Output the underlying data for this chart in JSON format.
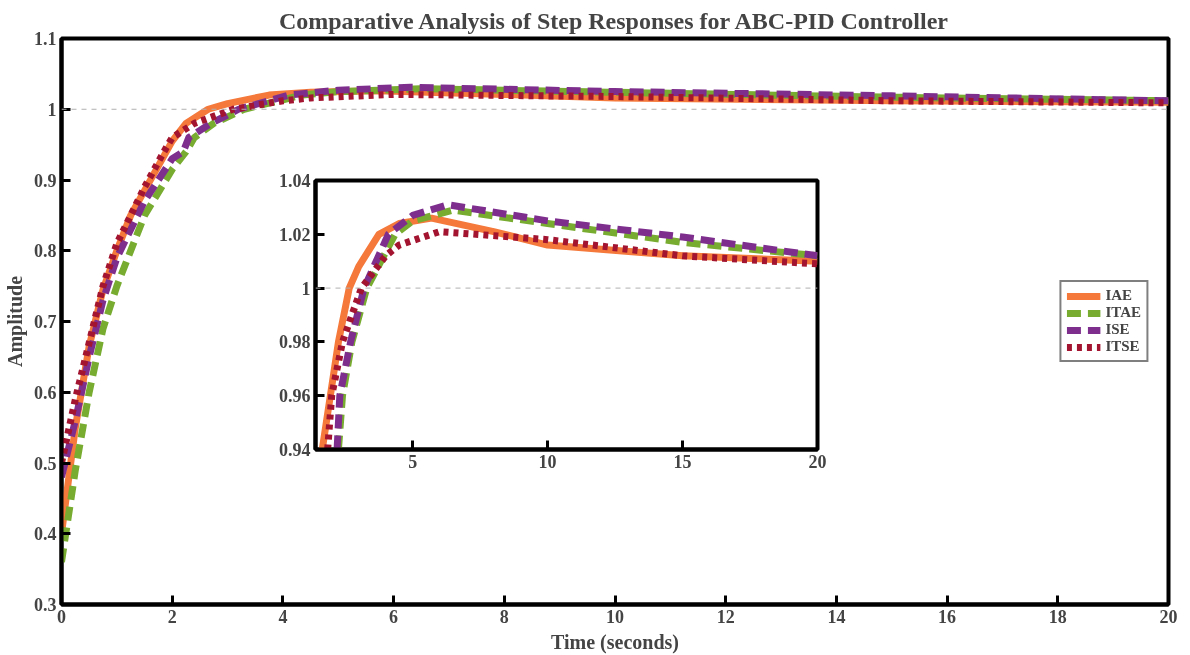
{
  "chart_data": [
    {
      "type": "line",
      "title": "Comparative Analysis of Step Responses for ABC-PID Controller",
      "xlabel": "Time (seconds)",
      "ylabel": "Amplitude",
      "xlim": [
        0,
        20
      ],
      "ylim": [
        0.3,
        1.1
      ],
      "xticks": [
        0,
        2,
        4,
        6,
        8,
        10,
        12,
        14,
        16,
        18,
        20
      ],
      "yticks": [
        0.3,
        0.4,
        0.5,
        0.6,
        0.7,
        0.8,
        0.9,
        1,
        1.1
      ],
      "grid": false,
      "legend": "right",
      "ref_lines": [
        {
          "axis": "y",
          "value": 1,
          "color": "#b0b0b0",
          "line_style": "dotted"
        }
      ],
      "series": [
        {
          "name": "IAE",
          "color": "#f4793b",
          "line_style": "solid",
          "x": [
            0,
            0.25,
            0.5,
            0.75,
            1,
            1.25,
            1.5,
            2,
            2.25,
            2.65,
            3,
            3.75,
            4.5,
            5.7,
            8,
            10,
            15,
            20
          ],
          "values": [
            0.4,
            0.55,
            0.665,
            0.745,
            0.8,
            0.85,
            0.885,
            0.955,
            0.98,
            1.0,
            1.008,
            1.02,
            1.024,
            1.026,
            1.021,
            1.016,
            1.012,
            1.01
          ]
        },
        {
          "name": "ITAE",
          "color": "#77ac30",
          "line_style": "dashed",
          "x": [
            0,
            0.25,
            0.5,
            0.75,
            1,
            1.5,
            2,
            2.25,
            2.4,
            2.75,
            3.3,
            4.35,
            5,
            6.5,
            10,
            15,
            20
          ],
          "values": [
            0.36,
            0.49,
            0.6,
            0.69,
            0.75,
            0.85,
            0.915,
            0.94,
            0.96,
            0.98,
            1.0,
            1.02,
            1.025,
            1.029,
            1.024,
            1.017,
            1.012
          ]
        },
        {
          "name": "ISE",
          "color": "#7e2f8e",
          "line_style": "dashed",
          "x": [
            0,
            0.25,
            0.5,
            0.75,
            1,
            1.5,
            2,
            2.2,
            2.3,
            2.7,
            3.2,
            4.1,
            5,
            6.3,
            10,
            15,
            20
          ],
          "values": [
            0.48,
            0.56,
            0.65,
            0.73,
            0.79,
            0.87,
            0.93,
            0.94,
            0.96,
            0.98,
            1.0,
            1.02,
            1.027,
            1.031,
            1.025,
            1.019,
            1.012
          ]
        },
        {
          "name": "ITSE",
          "color": "#a2142f",
          "line_style": "dotted",
          "x": [
            0,
            0.25,
            0.5,
            0.75,
            1,
            1.5,
            1.85,
            2,
            2.4,
            3.1,
            4,
            4.5,
            6,
            10,
            15,
            20
          ],
          "values": [
            0.5,
            0.59,
            0.67,
            0.75,
            0.81,
            0.89,
            0.94,
            0.96,
            0.98,
            1.0,
            1.012,
            1.016,
            1.021,
            1.018,
            1.012,
            1.009
          ]
        }
      ]
    },
    {
      "type": "line",
      "xlim": [
        1.4,
        20
      ],
      "ylim": [
        0.94,
        1.04
      ],
      "xticks": [
        5,
        10,
        15,
        20
      ],
      "yticks": [
        0.94,
        0.96,
        0.98,
        1,
        1.02,
        1.04
      ],
      "grid": false,
      "ref_lines": [
        {
          "axis": "y",
          "value": 1,
          "color": "#b0b0b0",
          "line_style": "dotted"
        }
      ],
      "series": [
        {
          "color": "#f4793b",
          "line_style": "solid",
          "x": [
            1.65,
            1.95,
            2.25,
            2.65,
            3,
            3.75,
            4.5,
            5.7,
            8,
            10,
            15,
            20
          ],
          "values": [
            0.94,
            0.96,
            0.98,
            1.0,
            1.008,
            1.02,
            1.024,
            1.026,
            1.021,
            1.016,
            1.012,
            1.01
          ]
        },
        {
          "color": "#77ac30",
          "line_style": "dashed",
          "x": [
            2.25,
            2.4,
            2.75,
            3.3,
            4.35,
            5,
            6.5,
            10,
            15,
            20
          ],
          "values": [
            0.94,
            0.96,
            0.98,
            1.0,
            1.02,
            1.025,
            1.029,
            1.024,
            1.017,
            1.012
          ]
        },
        {
          "color": "#7e2f8e",
          "line_style": "dashed",
          "x": [
            2.2,
            2.3,
            2.7,
            3.2,
            4.1,
            5,
            6.3,
            10,
            15,
            20
          ],
          "values": [
            0.94,
            0.96,
            0.98,
            1.0,
            1.02,
            1.027,
            1.031,
            1.025,
            1.019,
            1.012
          ]
        },
        {
          "color": "#a2142f",
          "line_style": "dotted",
          "x": [
            1.85,
            2,
            2.4,
            3.1,
            4,
            4.5,
            6,
            10,
            15,
            20
          ],
          "values": [
            0.94,
            0.96,
            0.98,
            1.0,
            1.012,
            1.016,
            1.021,
            1.018,
            1.012,
            1.009
          ]
        }
      ]
    }
  ]
}
